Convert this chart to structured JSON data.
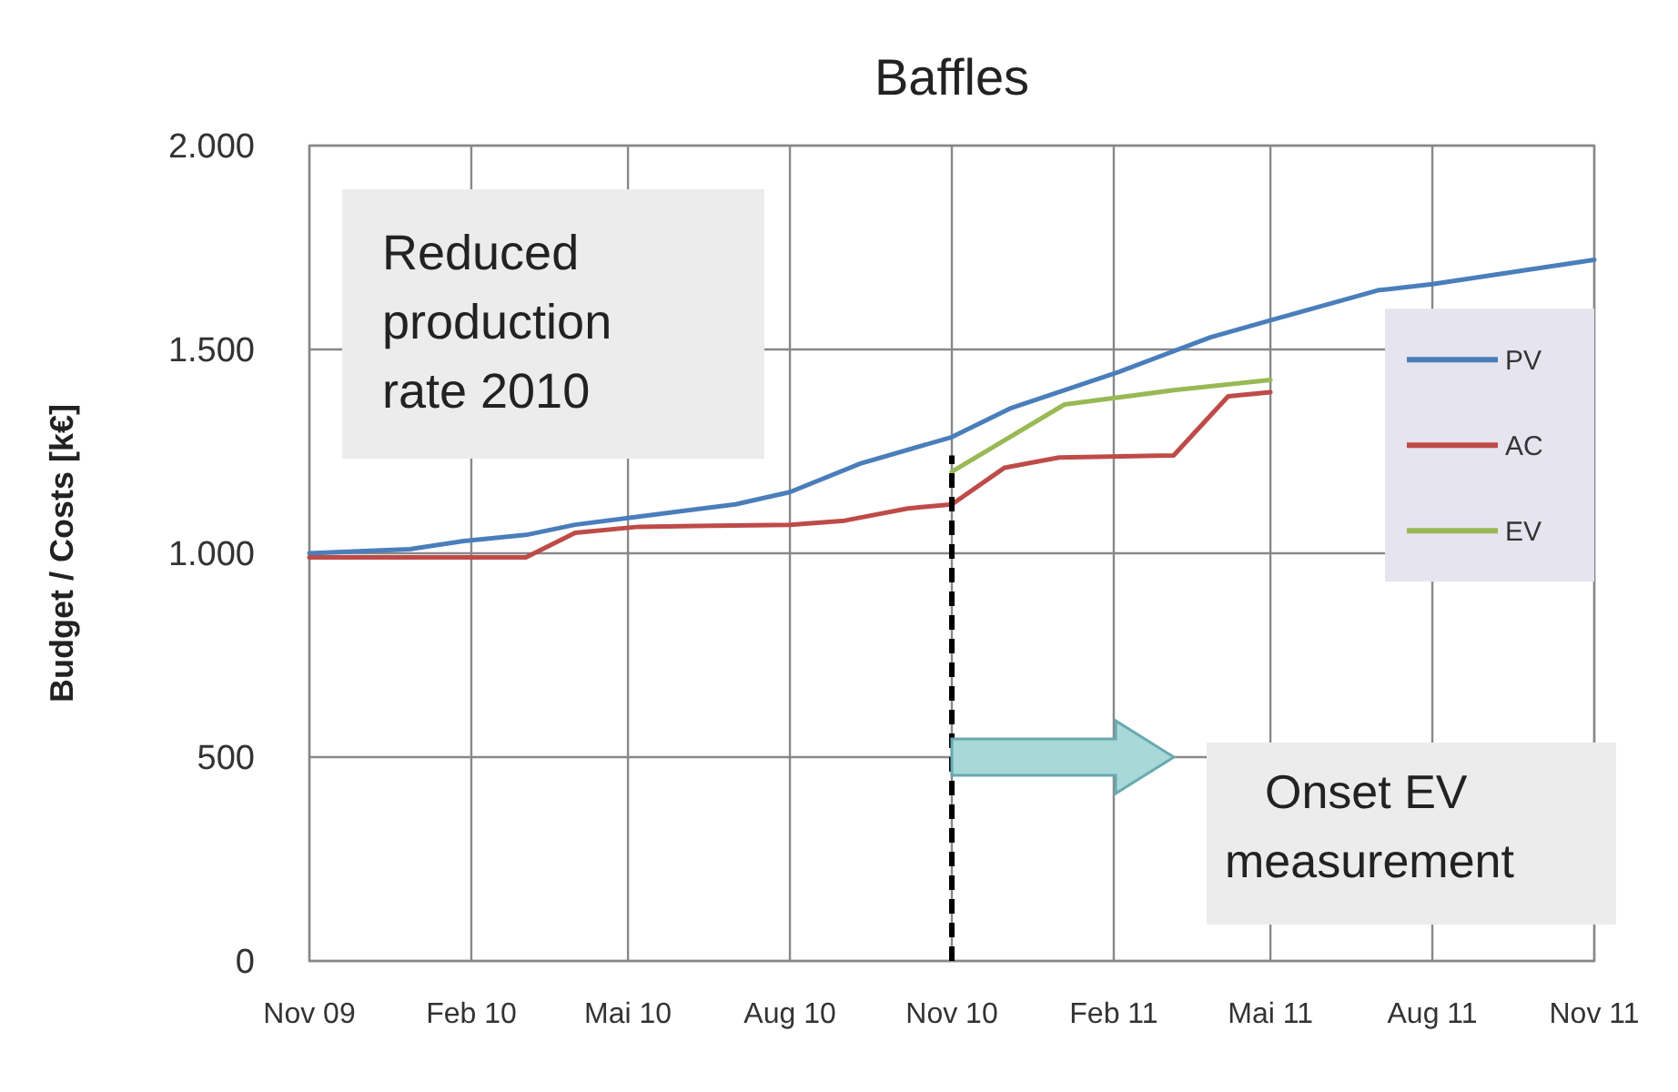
{
  "chart_data": {
    "type": "line",
    "title": "Baffles",
    "ylabel": "Budget / Costs [k€]",
    "xlim": [
      "2009-11-01",
      "2011-11-01"
    ],
    "xticks": [
      {
        "value": "2009-11-01",
        "label": "Nov 09"
      },
      {
        "value": "2010-02-01",
        "label": "Feb 10"
      },
      {
        "value": "2010-05-01",
        "label": "Mai 10"
      },
      {
        "value": "2010-08-01",
        "label": "Aug 10"
      },
      {
        "value": "2010-11-01",
        "label": "Nov 10"
      },
      {
        "value": "2011-02-01",
        "label": "Feb 11"
      },
      {
        "value": "2011-05-01",
        "label": "Mai 11"
      },
      {
        "value": "2011-08-01",
        "label": "Aug 11"
      },
      {
        "value": "2011-11-01",
        "label": "Nov 11"
      }
    ],
    "ylim": [
      0,
      2000
    ],
    "yticks": [
      {
        "value": 0,
        "label": "0"
      },
      {
        "value": 500,
        "label": "500"
      },
      {
        "value": 1000,
        "label": "1.000"
      },
      {
        "value": 1500,
        "label": "1.500"
      },
      {
        "value": 2000,
        "label": "2.000"
      }
    ],
    "grid": true,
    "legend": "right",
    "line_style": "solid",
    "marker": "none",
    "series": [
      {
        "name": "PV",
        "color": "#4a7ebb",
        "x": [
          "2009-11-01",
          "2009-12-28",
          "2010-01-28",
          "2010-03-04",
          "2010-04-01",
          "2010-05-07",
          "2010-07-01",
          "2010-08-01",
          "2010-09-10",
          "2010-11-01",
          "2010-12-04",
          "2011-02-04",
          "2011-03-28",
          "2011-05-04",
          "2011-07-01",
          "2011-08-01",
          "2011-11-01"
        ],
        "values": [
          1000,
          1010,
          1030,
          1045,
          1070,
          1090,
          1120,
          1150,
          1220,
          1285,
          1355,
          1445,
          1530,
          1575,
          1645,
          1660,
          1720
        ]
      },
      {
        "name": "AC",
        "color": "#be4b48",
        "x": [
          "2009-11-01",
          "2010-03-04",
          "2010-04-01",
          "2010-05-07",
          "2010-08-01",
          "2010-09-01",
          "2010-10-07",
          "2010-11-01",
          "2010-12-01",
          "2011-01-01",
          "2011-03-07",
          "2011-04-07",
          "2011-05-01"
        ],
        "values": [
          990,
          990,
          1050,
          1065,
          1070,
          1080,
          1110,
          1120,
          1210,
          1235,
          1240,
          1385,
          1395
        ]
      },
      {
        "name": "EV",
        "color": "#98b954",
        "x": [
          "2010-11-01",
          "2011-01-04",
          "2011-03-07",
          "2011-05-01"
        ],
        "values": [
          1200,
          1365,
          1400,
          1425
        ]
      }
    ],
    "ref_lines": [
      {
        "axis": "x",
        "value": "2010-11-01",
        "line_style": "dashed",
        "color": "#000000"
      }
    ],
    "annotations": [
      "Reduced production rate 2010",
      "Onset EV measurement"
    ]
  }
}
